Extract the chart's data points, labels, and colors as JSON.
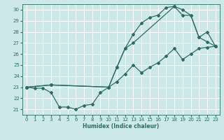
{
  "xlabel": "Humidex (Indice chaleur)",
  "background_color": "#cde8e8",
  "grid_color": "#ffffff",
  "line_color": "#2e6b60",
  "xlim": [
    -0.5,
    23.5
  ],
  "ylim": [
    20.5,
    30.5
  ],
  "xticks": [
    0,
    1,
    2,
    3,
    4,
    5,
    6,
    7,
    8,
    9,
    10,
    11,
    12,
    13,
    14,
    15,
    16,
    17,
    18,
    19,
    20,
    21,
    22,
    23
  ],
  "yticks": [
    21,
    22,
    23,
    24,
    25,
    26,
    27,
    28,
    29,
    30
  ],
  "series1_x": [
    0,
    1,
    2,
    3,
    4,
    5,
    6,
    7,
    8,
    9,
    10,
    11,
    12,
    13,
    14,
    15,
    16,
    17,
    18,
    19,
    20,
    21,
    22,
    23
  ],
  "series1_y": [
    23.0,
    22.9,
    22.9,
    22.5,
    21.2,
    21.2,
    21.0,
    21.35,
    21.45,
    22.5,
    23.0,
    24.8,
    26.5,
    27.8,
    28.8,
    29.3,
    29.5,
    30.2,
    30.3,
    30.0,
    29.5,
    27.5,
    27.1,
    26.7
  ],
  "series2_x": [
    0,
    3,
    10,
    11,
    12,
    13,
    14,
    15,
    16,
    17,
    18,
    19,
    20,
    21,
    22,
    23
  ],
  "series2_y": [
    23.0,
    23.2,
    23.0,
    23.5,
    24.2,
    25.0,
    24.3,
    24.8,
    25.2,
    25.8,
    26.5,
    25.5,
    26.0,
    26.5,
    26.6,
    26.7
  ],
  "series3_x": [
    0,
    3,
    10,
    11,
    12,
    13,
    18,
    19,
    20,
    21,
    22,
    23
  ],
  "series3_y": [
    23.0,
    23.2,
    23.0,
    24.8,
    26.5,
    27.0,
    30.3,
    29.5,
    29.5,
    27.5,
    28.0,
    26.7
  ]
}
